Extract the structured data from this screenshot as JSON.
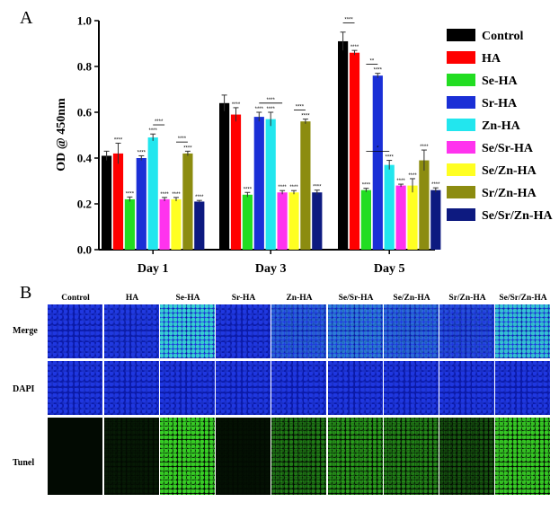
{
  "panel_a_letter": "A",
  "panel_b_letter": "B",
  "colors": {
    "Control": "#000000",
    "HA": "#ff0000",
    "Se-HA": "#22dd22",
    "Sr-HA": "#1a2fd6",
    "Zn-HA": "#22e6ee",
    "Se/Sr-HA": "#ff33ee",
    "Se/Zn-HA": "#ffff22",
    "Sr/Zn-HA": "#8c8c10",
    "Se/Sr/Zn-HA": "#0d1a80"
  },
  "chart_data": {
    "type": "bar",
    "title": "",
    "xlabel": "",
    "ylabel": "OD @ 450nm",
    "ylim": [
      0,
      1.0
    ],
    "yticks": [
      "0.0",
      "0.2",
      "0.4",
      "0.6",
      "0.8",
      "1.0"
    ],
    "categories": [
      "Day 1",
      "Day 3",
      "Day 5"
    ],
    "legend_position": "right",
    "series": [
      {
        "name": "Control",
        "values": [
          0.41,
          0.64,
          0.91
        ],
        "errors": [
          0.02,
          0.035,
          0.04
        ],
        "sig": [
          "",
          "",
          ""
        ]
      },
      {
        "name": "HA",
        "values": [
          0.42,
          0.59,
          0.86
        ],
        "errors": [
          0.045,
          0.03,
          0.01
        ],
        "sig": [
          "****",
          "****",
          "****"
        ]
      },
      {
        "name": "Se-HA",
        "values": [
          0.22,
          0.24,
          0.26
        ],
        "errors": [
          0.01,
          0.01,
          0.008
        ],
        "sig": [
          "****",
          "****",
          "****"
        ]
      },
      {
        "name": "Sr-HA",
        "values": [
          0.4,
          0.58,
          0.76
        ],
        "errors": [
          0.01,
          0.02,
          0.01
        ],
        "sig": [
          "****",
          "****",
          "****"
        ]
      },
      {
        "name": "Zn-HA",
        "values": [
          0.49,
          0.57,
          0.37
        ],
        "errors": [
          0.015,
          0.03,
          0.02
        ],
        "sig": [
          "****",
          "****",
          "****"
        ]
      },
      {
        "name": "Se/Sr-HA",
        "values": [
          0.22,
          0.25,
          0.28
        ],
        "errors": [
          0.008,
          0.008,
          0.006
        ],
        "sig": [
          "****",
          "****",
          "****"
        ]
      },
      {
        "name": "Se/Zn-HA",
        "values": [
          0.22,
          0.25,
          0.28
        ],
        "errors": [
          0.008,
          0.008,
          0.03
        ],
        "sig": [
          "****",
          "****",
          "****"
        ]
      },
      {
        "name": "Sr/Zn-HA",
        "values": [
          0.42,
          0.56,
          0.39
        ],
        "errors": [
          0.01,
          0.01,
          0.045
        ],
        "sig": [
          "****",
          "****",
          "****"
        ]
      },
      {
        "name": "Se/Sr/Zn-HA",
        "values": [
          0.21,
          0.25,
          0.26
        ],
        "errors": [
          0.005,
          0.01,
          0.01
        ],
        "sig": [
          "****",
          "****",
          "****"
        ]
      }
    ],
    "brackets": [
      {
        "day": 1,
        "from": 4,
        "to": 5,
        "label": "****"
      },
      {
        "day": 1,
        "from": 6,
        "to": 7,
        "label": "****"
      },
      {
        "day": 3,
        "from": 3,
        "to": 5,
        "label": "****"
      },
      {
        "day": 3,
        "from": 6,
        "to": 7,
        "label": "****"
      },
      {
        "day": 5,
        "from": 0,
        "to": 1,
        "label": "****"
      },
      {
        "day": 5,
        "from": 2,
        "to": 3,
        "label": "**"
      },
      {
        "day": 5,
        "from": 2,
        "to": 4,
        "label": "*"
      }
    ]
  },
  "panel_b": {
    "columns": [
      "Control",
      "HA",
      "Se-HA",
      "Sr-HA",
      "Zn-HA",
      "Se/Sr-HA",
      "Se/Zn-HA",
      "Sr/Zn-HA",
      "Se/Sr/Zn-HA"
    ],
    "rows": [
      "Merge",
      "DAPI",
      "Tunel"
    ],
    "apoptosis_signal_level": [
      0.0,
      0.05,
      0.9,
      0.02,
      0.4,
      0.55,
      0.45,
      0.25,
      0.85
    ]
  }
}
